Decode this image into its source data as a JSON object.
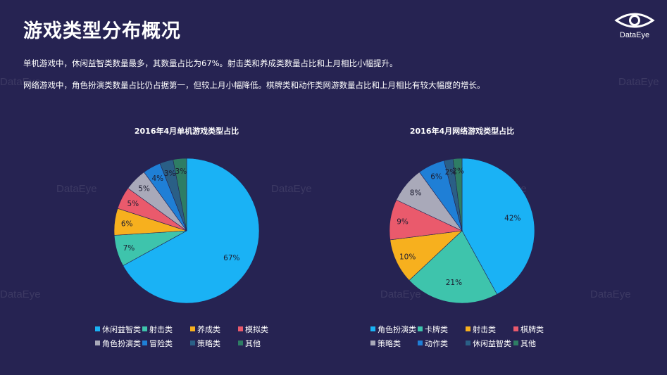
{
  "header": {
    "title": "游戏类型分布概况",
    "logo_text": "DataEye"
  },
  "summary": {
    "line1": "单机游戏中，休闲益智类数量最多，其数量占比为67%。射击类和养成类数量占比和上月相比小幅提升。",
    "line2": "网络游戏中，角色扮演类数量占比仍占据第一，但较上月小幅降低。棋牌类和动作类网游数量占比和上月相比有较大幅度的增长。"
  },
  "watermark_text": "DataEye",
  "chart_data": [
    {
      "type": "pie",
      "title": "2016年4月单机游戏类型占比",
      "labels": [
        "休闲益智类",
        "射击类",
        "养成类",
        "模拟类",
        "角色扮演类",
        "冒险类",
        "策略类",
        "其他"
      ],
      "values": [
        67,
        7,
        6,
        5,
        5,
        4,
        3,
        3
      ],
      "value_labels": [
        "67%",
        "7%",
        "6%",
        "5%",
        "5%",
        "4%",
        "3%",
        "3%"
      ],
      "colors": [
        "#1ab2f5",
        "#3ec4ac",
        "#f7b01e",
        "#ea5a6c",
        "#a9a9b9",
        "#1f7fd6",
        "#2a5f86",
        "#2e7d64"
      ],
      "legend_position": "bottom"
    },
    {
      "type": "pie",
      "title": "2016年4月网络游戏类型占比",
      "labels": [
        "角色扮演类",
        "卡牌类",
        "射击类",
        "棋牌类",
        "策略类",
        "动作类",
        "休闲益智类",
        "其他"
      ],
      "values": [
        42,
        21,
        10,
        9,
        8,
        6,
        2,
        2
      ],
      "value_labels": [
        "42%",
        "21%",
        "10%",
        "9%",
        "8%",
        "6%",
        "2%",
        "2%"
      ],
      "colors": [
        "#1ab2f5",
        "#3ec4ac",
        "#f7b01e",
        "#ea5a6c",
        "#a9a9b9",
        "#1f7fd6",
        "#2a5f86",
        "#2e7d64"
      ],
      "legend_position": "bottom"
    }
  ]
}
